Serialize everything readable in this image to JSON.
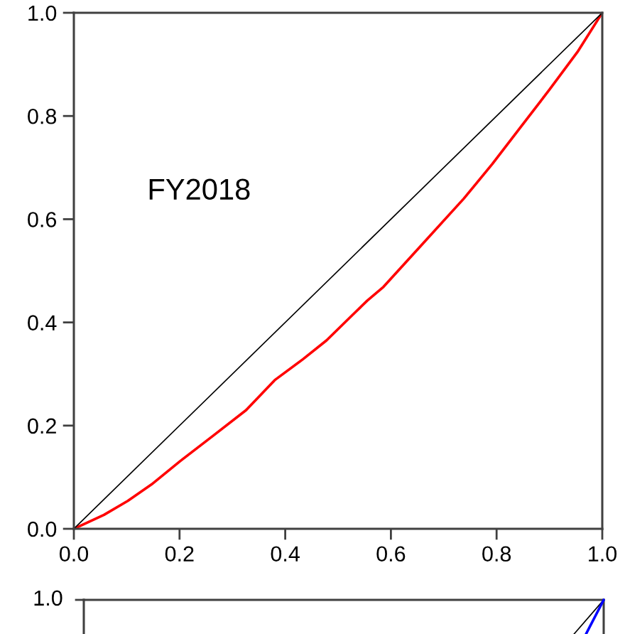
{
  "chart_data": [
    {
      "type": "line",
      "annotations": [
        "FY2018"
      ],
      "xlim": [
        0,
        1
      ],
      "ylim": [
        0,
        1
      ],
      "xticks": [
        {
          "value": 0,
          "label": "0.0"
        },
        0.2,
        0.4,
        0.6,
        0.8,
        {
          "value": 1,
          "label": "1.0"
        }
      ],
      "yticks": [
        {
          "value": 0,
          "label": "0.0"
        },
        0.2,
        0.4,
        0.6,
        0.8,
        {
          "value": 1,
          "label": "1.0"
        }
      ],
      "grid": false,
      "marker": "none",
      "line_style": "solid",
      "series": [
        {
          "color": "#ff0000",
          "x": [
            0,
            0.057,
            0.102,
            0.147,
            0.201,
            0.263,
            0.326,
            0.38,
            0.434,
            0.478,
            0.532,
            0.555,
            0.586,
            0.658,
            0.738,
            0.792,
            0.846,
            0.9,
            0.953,
            1.0
          ],
          "values": [
            0,
            0.027,
            0.054,
            0.086,
            0.131,
            0.18,
            0.23,
            0.288,
            0.329,
            0.365,
            0.419,
            0.442,
            0.469,
            0.55,
            0.64,
            0.707,
            0.779,
            0.851,
            0.924,
            1.0
          ]
        },
        {
          "color": "#000000",
          "x": [
            0,
            1
          ],
          "values": [
            0,
            1
          ]
        }
      ]
    },
    {
      "type": "other",
      "annotations": [
        "1.0"
      ]
    }
  ]
}
